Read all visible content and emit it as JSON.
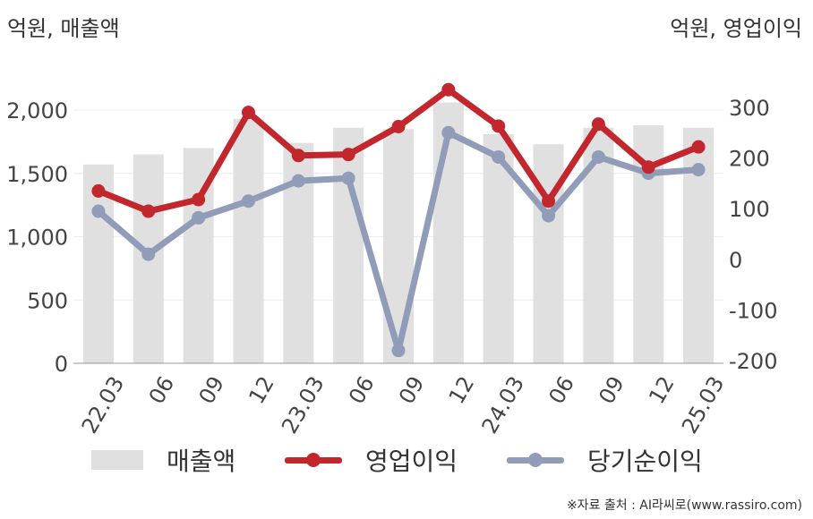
{
  "units": {
    "left": "억원, 매출액",
    "right": "억원, 영업이익"
  },
  "source": "※자료 출처 : AI라씨로(www.rassiro.com)",
  "legend": {
    "revenue": "매출액",
    "operating": "영업이익",
    "net": "당기순이익"
  },
  "colors": {
    "revenue": "#e0e0e0",
    "operating": "#c1272d",
    "net": "#909cb8"
  },
  "chart_data": {
    "type": "bar+line",
    "categories": [
      "22.03",
      "06",
      "09",
      "12",
      "23.03",
      "06",
      "09",
      "12",
      "24.03",
      "06",
      "09",
      "12",
      "25.03"
    ],
    "series": [
      {
        "name": "매출액",
        "type": "bar",
        "axis": "left",
        "values": [
          1570,
          1650,
          1700,
          1930,
          1740,
          1860,
          1850,
          2060,
          1810,
          1730,
          1860,
          1880,
          1860
        ]
      },
      {
        "name": "영업이익",
        "type": "line",
        "axis": "right",
        "values": [
          135,
          95,
          118,
          290,
          205,
          207,
          262,
          335,
          263,
          115,
          267,
          182,
          222
        ]
      },
      {
        "name": "당기순이익",
        "type": "line",
        "axis": "right",
        "values": [
          95,
          10,
          82,
          115,
          155,
          160,
          -180,
          250,
          202,
          86,
          202,
          170,
          177
        ]
      }
    ],
    "y_left": {
      "ticks": [
        "0",
        "500",
        "1,000",
        "1,500",
        "2,000"
      ],
      "lim": [
        0,
        2000
      ]
    },
    "y_right": {
      "ticks": [
        "-200",
        "-100",
        "0",
        "100",
        "200",
        "300"
      ],
      "lim": [
        -200,
        300
      ]
    },
    "grid": true,
    "legend_position": "bottom"
  }
}
